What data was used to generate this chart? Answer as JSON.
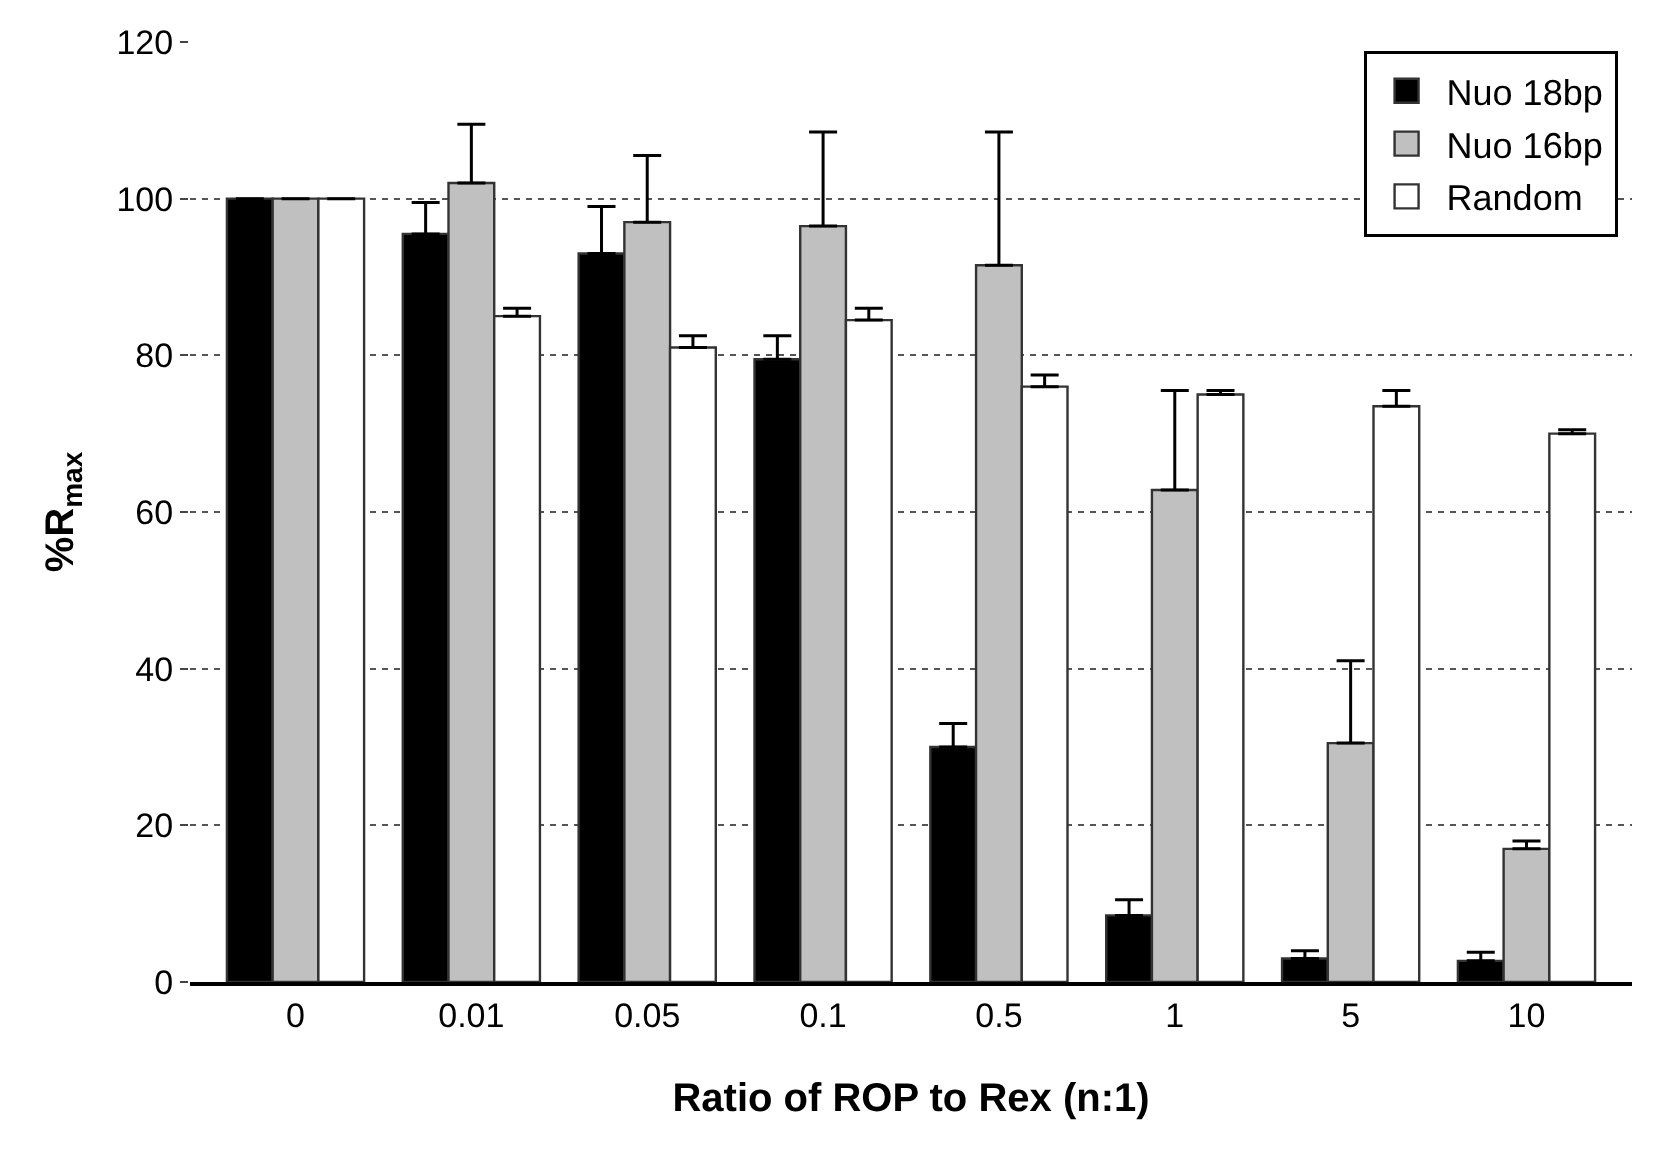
{
  "chart_data": {
    "type": "bar",
    "xlabel": "Ratio of ROP to Rex (n:1)",
    "ylabel": "%R$_{max}$",
    "categories": [
      "0",
      "0.01",
      "0.05",
      "0.1",
      "0.5",
      "1",
      "5",
      "10"
    ],
    "series": [
      {
        "name": "Nuo 18bp",
        "color": "#000000",
        "values": [
          100,
          95.5,
          93,
          79.5,
          30,
          8.5,
          3,
          2.7
        ],
        "errors": [
          null,
          [
            95.5,
            99.5
          ],
          [
            93,
            99
          ],
          [
            79.5,
            82.5
          ],
          [
            30,
            33
          ],
          [
            8.5,
            10.5
          ],
          [
            3,
            4
          ],
          [
            2.7,
            3.8
          ]
        ]
      },
      {
        "name": "Nuo 16bp",
        "color": "#c0c0c0",
        "values": [
          100,
          102,
          97,
          96.5,
          91.5,
          62.8,
          30.5,
          17
        ],
        "errors": [
          null,
          [
            102,
            109.5
          ],
          [
            97,
            105.5
          ],
          [
            96.5,
            108.5
          ],
          [
            91.5,
            108.5
          ],
          [
            62.8,
            75.5
          ],
          [
            30.5,
            41
          ],
          [
            17,
            18
          ]
        ]
      },
      {
        "name": "Random",
        "color": "#ffffff",
        "values": [
          100,
          85,
          81,
          84.5,
          76,
          75,
          73.5,
          70
        ],
        "errors": [
          null,
          [
            85,
            86
          ],
          [
            81,
            82.5
          ],
          [
            84.5,
            86
          ],
          [
            76,
            77.5
          ],
          [
            75,
            75.5
          ],
          [
            73.5,
            75.5
          ],
          [
            70,
            70.5
          ]
        ]
      }
    ],
    "ylim": [
      0,
      120
    ],
    "yticks": [
      0,
      20,
      40,
      60,
      80,
      100,
      120
    ],
    "grid": "y",
    "legend": "top right"
  }
}
